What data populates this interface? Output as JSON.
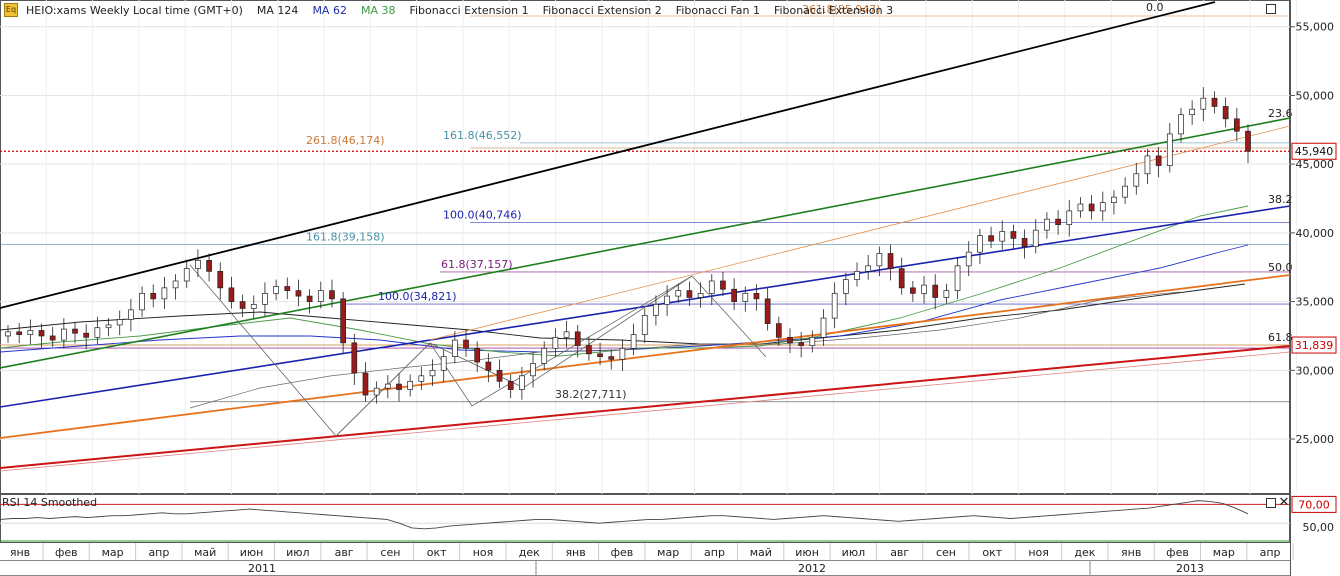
{
  "toolbar": {
    "symbol": "HEIO:xams Weekly Local time (GMT+0)",
    "ma124": "MA 124",
    "ma62": "MA 62",
    "ma38": "MA 38",
    "fib_ext1": "Fibonacci Extension 1",
    "fib_ext2": "Fibonacci Extension 2",
    "fib_fan1": "Fibonacci Fan 1",
    "fib_ext3": "Fibonacci Extension 3"
  },
  "rsi_label": "RSI 14 Smoothed",
  "colors": {
    "candle_up": "#ffffff",
    "candle_down": "#9b1b1b",
    "price_line": "#cc0000",
    "fan_black": "#000000",
    "fan_green": "#1e7f1e",
    "fan_blue": "#1a22b0",
    "fan_orange": "#e8711c",
    "fan_red": "#cc1414",
    "ma124": "#222222",
    "ma62": "#2233cc",
    "ma38": "#4c9a4c"
  },
  "chart_data": {
    "type": "candlestick",
    "y_ticks": [
      "55,000",
      "50,000",
      "45,000",
      "40,000",
      "35,000",
      "30,000",
      "25,000"
    ],
    "ylim": [
      21000,
      56800
    ],
    "months": [
      "янв",
      "фев",
      "мар",
      "апр",
      "май",
      "июн",
      "июл",
      "авг",
      "сен",
      "окт",
      "ноя",
      "дек",
      "янв",
      "фев",
      "мар",
      "апр",
      "май",
      "июн",
      "июл",
      "авг",
      "сен",
      "окт",
      "ноя",
      "дек",
      "янв",
      "фев",
      "мар",
      "апр"
    ],
    "years": [
      "2011",
      "2012",
      "2013"
    ],
    "current_price": "45,940",
    "current_price_value": 45940,
    "marker_price": "31,839",
    "marker_price_value": 31839,
    "fib_labels": [
      {
        "text": "261.8(46,174)",
        "value": 46174,
        "color": "#c87a3a"
      },
      {
        "text": "161.8(46,552)",
        "value": 46552,
        "color": "#4a8fa8"
      },
      {
        "text": "100.0(40,746)",
        "value": 40746,
        "color": "#1a22b0"
      },
      {
        "text": "161.8(39,158)",
        "value": 39158,
        "color": "#4a8fa8"
      },
      {
        "text": "61.8(37,157)",
        "value": 37157,
        "color": "#7a1a7a"
      },
      {
        "text": "100.0(34,821)",
        "value": 34821,
        "color": "#1a22b0"
      },
      {
        "text": "38.2(27,711)",
        "value": 27711,
        "color": "#333333"
      }
    ],
    "fib_top_label": "361.8(55,947)",
    "fan_labels": [
      "0.0",
      "23.6",
      "38.2",
      "50.0",
      "61.8"
    ],
    "rsi_ticks": [
      "70,00",
      "50,00"
    ],
    "rsi_values": [
      54,
      55,
      55,
      56,
      55,
      56,
      57,
      56,
      57,
      58,
      58,
      59,
      60,
      61,
      60,
      60,
      61,
      62,
      63,
      64,
      65,
      64,
      63,
      62,
      61,
      60,
      59,
      58,
      57,
      56,
      55,
      54,
      50,
      45,
      44,
      45,
      47,
      48,
      49,
      50,
      51,
      52,
      53,
      54,
      54,
      53,
      52,
      51,
      50,
      51,
      52,
      53,
      54,
      54,
      55,
      56,
      57,
      58,
      58,
      57,
      56,
      55,
      54,
      55,
      56,
      57,
      58,
      57,
      56,
      55,
      54,
      53,
      52,
      53,
      54,
      55,
      56,
      57,
      58,
      57,
      56,
      55,
      56,
      57,
      58,
      59,
      60,
      61,
      62,
      63,
      64,
      65,
      66,
      68,
      70,
      72,
      74,
      73,
      71,
      66,
      60
    ]
  }
}
